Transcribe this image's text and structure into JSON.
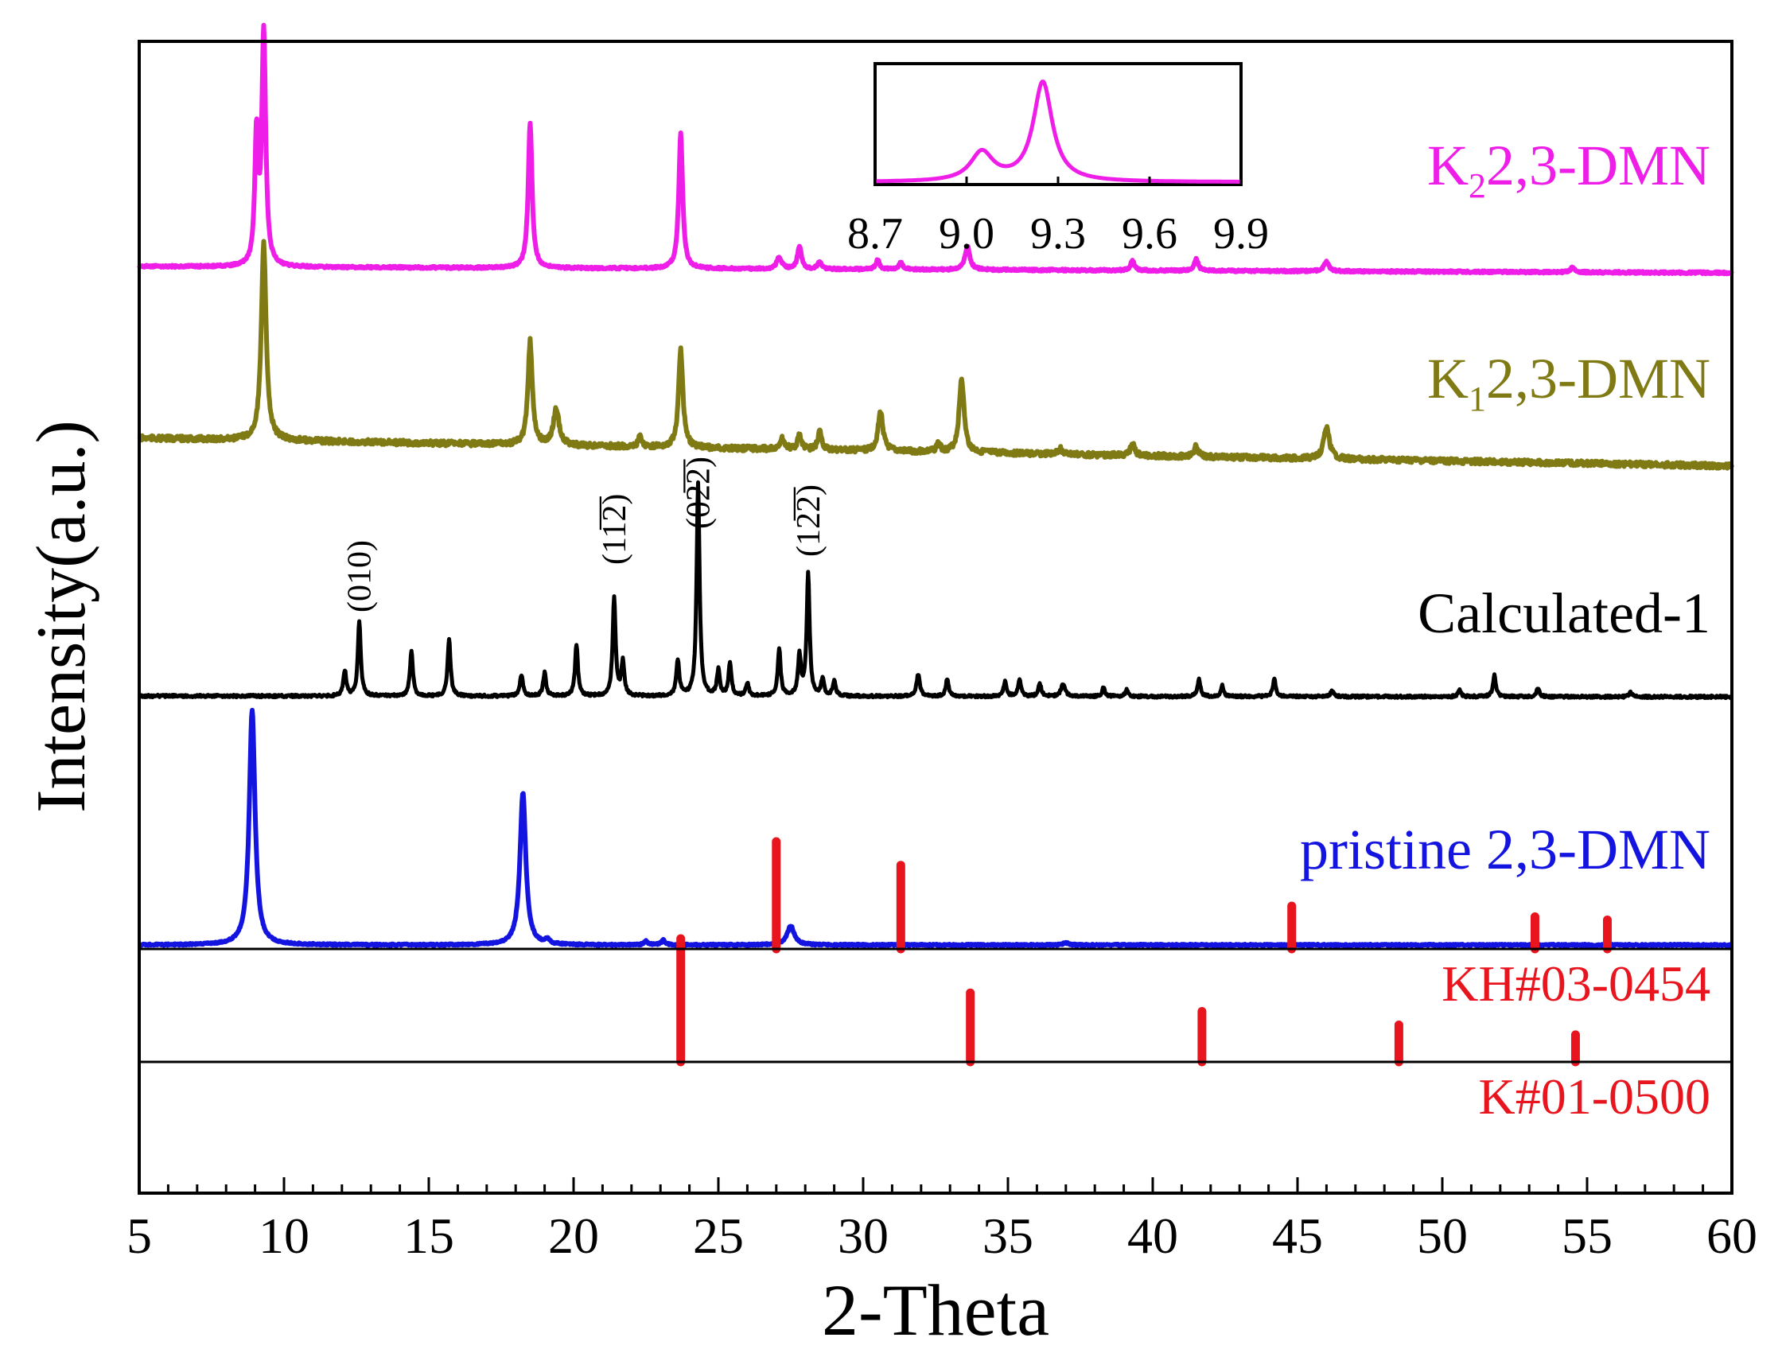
{
  "colors": {
    "k2": "#ee1ee8",
    "k1": "#7f7a14",
    "calc": "#000000",
    "pristine": "#1414e0",
    "ref": "#e8141e",
    "frame": "#000000"
  },
  "chart_data": {
    "type": "line",
    "title": "",
    "xlabel": "2-Theta",
    "ylabel": "Intensity(a.u.)",
    "xlim": [
      5,
      60
    ],
    "x_ticks": [
      "5",
      "10",
      "15",
      "20",
      "25",
      "30",
      "35",
      "40",
      "45",
      "50",
      "55",
      "60"
    ],
    "grid": false,
    "series": [
      {
        "name": "K22,3-DMN",
        "label_main": "K",
        "label_sub": "2",
        "label_rest": "2,3-DMN",
        "baseline": 0,
        "peaks": [
          {
            "x": 9.05,
            "h": 0.55,
            "w": 0.07
          },
          {
            "x": 9.3,
            "h": 1.0,
            "w": 0.08
          },
          {
            "x": 18.5,
            "h": 0.62,
            "w": 0.08
          },
          {
            "x": 23.7,
            "h": 0.58,
            "w": 0.08
          },
          {
            "x": 27.1,
            "h": 0.05,
            "w": 0.1
          },
          {
            "x": 27.8,
            "h": 0.1,
            "w": 0.08
          },
          {
            "x": 28.5,
            "h": 0.03,
            "w": 0.08
          },
          {
            "x": 30.5,
            "h": 0.04,
            "w": 0.08
          },
          {
            "x": 31.3,
            "h": 0.03,
            "w": 0.08
          },
          {
            "x": 33.6,
            "h": 0.1,
            "w": 0.1
          },
          {
            "x": 39.3,
            "h": 0.04,
            "w": 0.08
          },
          {
            "x": 41.5,
            "h": 0.05,
            "w": 0.08
          },
          {
            "x": 46.0,
            "h": 0.04,
            "w": 0.1
          },
          {
            "x": 54.5,
            "h": 0.02,
            "w": 0.08
          }
        ]
      },
      {
        "name": "K12,3-DMN",
        "label_main": "K",
        "label_sub": "1",
        "label_rest": "2,3-DMN",
        "baseline": 0.12,
        "peaks": [
          {
            "x": 9.3,
            "h": 0.95,
            "w": 0.1
          },
          {
            "x": 18.5,
            "h": 0.5,
            "w": 0.09
          },
          {
            "x": 19.4,
            "h": 0.17,
            "w": 0.12
          },
          {
            "x": 22.3,
            "h": 0.05,
            "w": 0.08
          },
          {
            "x": 23.7,
            "h": 0.47,
            "w": 0.09
          },
          {
            "x": 27.2,
            "h": 0.05,
            "w": 0.1
          },
          {
            "x": 27.8,
            "h": 0.07,
            "w": 0.08
          },
          {
            "x": 28.5,
            "h": 0.09,
            "w": 0.08
          },
          {
            "x": 30.6,
            "h": 0.19,
            "w": 0.1
          },
          {
            "x": 32.6,
            "h": 0.04,
            "w": 0.08
          },
          {
            "x": 33.4,
            "h": 0.36,
            "w": 0.1
          },
          {
            "x": 36.8,
            "h": 0.03,
            "w": 0.08
          },
          {
            "x": 39.3,
            "h": 0.06,
            "w": 0.08
          },
          {
            "x": 41.5,
            "h": 0.05,
            "w": 0.08
          },
          {
            "x": 46.0,
            "h": 0.15,
            "w": 0.12
          }
        ]
      },
      {
        "name": "Calculated-1",
        "baseline": 0,
        "peaks": [
          {
            "x": 12.1,
            "h": 0.12,
            "w": 0.06
          },
          {
            "x": 12.6,
            "h": 0.35,
            "w": 0.06
          },
          {
            "x": 14.4,
            "h": 0.21,
            "w": 0.06
          },
          {
            "x": 15.7,
            "h": 0.27,
            "w": 0.06
          },
          {
            "x": 18.2,
            "h": 0.1,
            "w": 0.06
          },
          {
            "x": 19.0,
            "h": 0.11,
            "w": 0.06
          },
          {
            "x": 20.1,
            "h": 0.24,
            "w": 0.06
          },
          {
            "x": 21.4,
            "h": 0.46,
            "w": 0.06
          },
          {
            "x": 21.7,
            "h": 0.16,
            "w": 0.06
          },
          {
            "x": 23.6,
            "h": 0.17,
            "w": 0.06
          },
          {
            "x": 24.3,
            "h": 1.0,
            "w": 0.06
          },
          {
            "x": 25.0,
            "h": 0.12,
            "w": 0.06
          },
          {
            "x": 25.4,
            "h": 0.15,
            "w": 0.06
          },
          {
            "x": 26.0,
            "h": 0.06,
            "w": 0.06
          },
          {
            "x": 27.1,
            "h": 0.22,
            "w": 0.06
          },
          {
            "x": 27.8,
            "h": 0.19,
            "w": 0.06
          },
          {
            "x": 28.1,
            "h": 0.57,
            "w": 0.06
          },
          {
            "x": 28.6,
            "h": 0.08,
            "w": 0.06
          },
          {
            "x": 29.0,
            "h": 0.07,
            "w": 0.06
          },
          {
            "x": 31.9,
            "h": 0.1,
            "w": 0.07
          },
          {
            "x": 32.9,
            "h": 0.08,
            "w": 0.06
          },
          {
            "x": 34.9,
            "h": 0.07,
            "w": 0.06
          },
          {
            "x": 35.4,
            "h": 0.08,
            "w": 0.06
          },
          {
            "x": 36.1,
            "h": 0.06,
            "w": 0.06
          },
          {
            "x": 36.9,
            "h": 0.06,
            "w": 0.08
          },
          {
            "x": 38.3,
            "h": 0.04,
            "w": 0.06
          },
          {
            "x": 39.1,
            "h": 0.03,
            "w": 0.06
          },
          {
            "x": 41.6,
            "h": 0.08,
            "w": 0.06
          },
          {
            "x": 42.4,
            "h": 0.05,
            "w": 0.06
          },
          {
            "x": 44.2,
            "h": 0.08,
            "w": 0.06
          },
          {
            "x": 46.2,
            "h": 0.03,
            "w": 0.06
          },
          {
            "x": 50.6,
            "h": 0.03,
            "w": 0.06
          },
          {
            "x": 51.8,
            "h": 0.1,
            "w": 0.06
          },
          {
            "x": 53.3,
            "h": 0.04,
            "w": 0.06
          },
          {
            "x": 56.5,
            "h": 0.02,
            "w": 0.06
          }
        ]
      },
      {
        "name": "pristine 2,3-DMN",
        "baseline": 0,
        "peaks": [
          {
            "x": 8.9,
            "h": 1.0,
            "w": 0.12
          },
          {
            "x": 18.25,
            "h": 0.65,
            "w": 0.12
          },
          {
            "x": 19.1,
            "h": 0.02,
            "w": 0.08
          },
          {
            "x": 22.5,
            "h": 0.015,
            "w": 0.08
          },
          {
            "x": 23.1,
            "h": 0.02,
            "w": 0.08
          },
          {
            "x": 27.5,
            "h": 0.08,
            "w": 0.15
          },
          {
            "x": 37.0,
            "h": 0.01,
            "w": 0.1
          }
        ]
      }
    ],
    "miller_annotations": [
      {
        "x": 12.6,
        "label": "(010)"
      },
      {
        "x": 21.4,
        "label": "(11̅2̅)"
      },
      {
        "x": 24.3,
        "label": "(02̅2̅)"
      },
      {
        "x": 28.1,
        "label": "(12̅2̅)"
      }
    ],
    "reference_patterns": [
      {
        "name": "KH#03-0454",
        "lines": [
          {
            "x": 27.0,
            "h": 1.0
          },
          {
            "x": 31.3,
            "h": 0.78
          },
          {
            "x": 44.8,
            "h": 0.4
          },
          {
            "x": 53.2,
            "h": 0.3
          },
          {
            "x": 55.7,
            "h": 0.27
          }
        ]
      },
      {
        "name": "K#01-0500",
        "lines": [
          {
            "x": 23.7,
            "h": 1.0
          },
          {
            "x": 33.7,
            "h": 0.56
          },
          {
            "x": 41.7,
            "h": 0.41
          },
          {
            "x": 48.5,
            "h": 0.3
          },
          {
            "x": 54.6,
            "h": 0.22
          }
        ]
      }
    ],
    "inset": {
      "xlim": [
        8.7,
        9.9
      ],
      "x_ticks": [
        "8.7",
        "9.0",
        "9.3",
        "9.6",
        "9.9"
      ],
      "peaks": [
        {
          "x": 9.05,
          "h": 0.29,
          "w": 0.045
        },
        {
          "x": 9.25,
          "h": 1.0,
          "w": 0.038
        }
      ]
    }
  }
}
